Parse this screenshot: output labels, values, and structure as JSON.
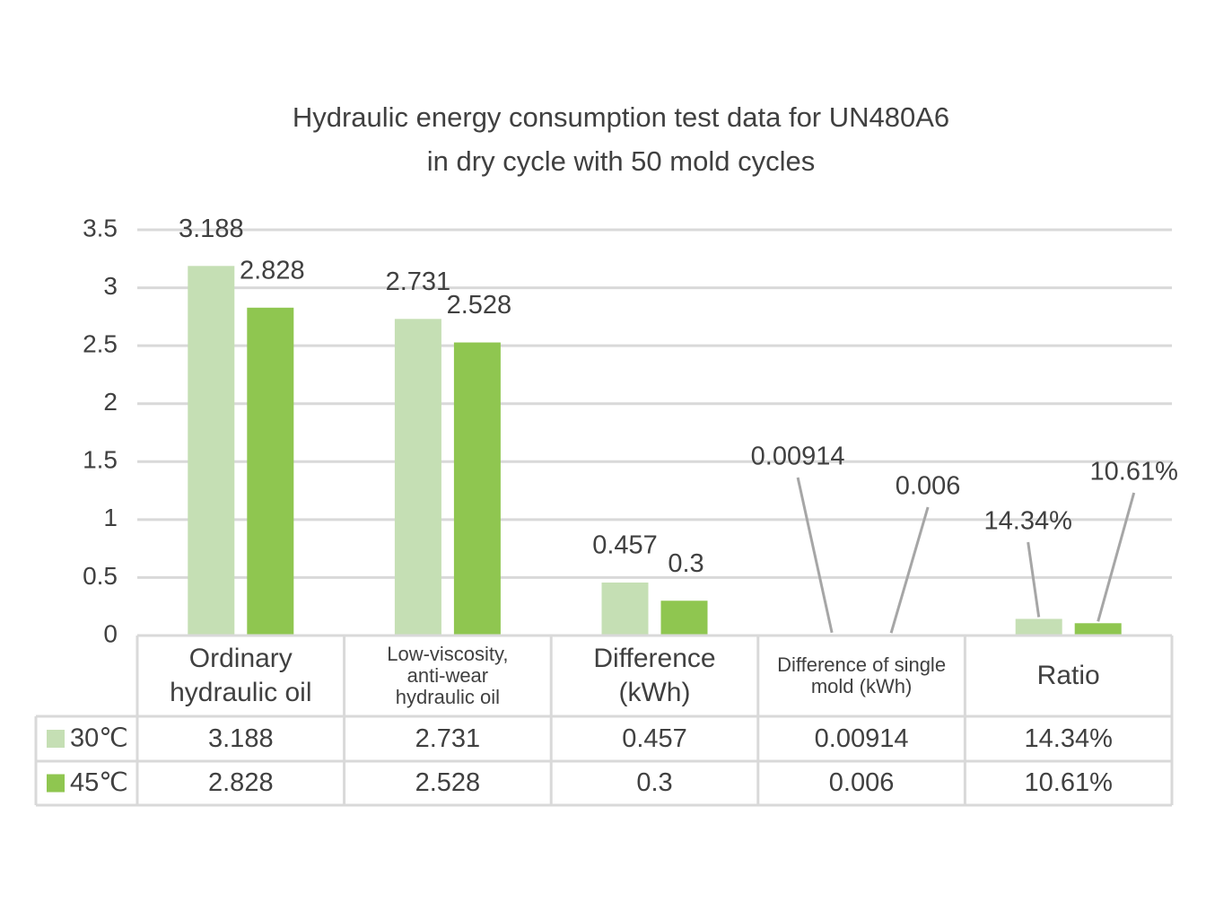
{
  "chart_data": {
    "type": "bar",
    "title": "Hydraulic energy consumption test data for UN480A6 in dry cycle with 50 mold cycles",
    "categories": [
      "Ordinary hydraulic oil",
      "Low-viscosity, anti-wear hydraulic oil",
      "Difference (kWh)",
      "Difference of single mold (kWh)",
      "Ratio"
    ],
    "series": [
      {
        "name": "30℃",
        "color": "#c5dfb4",
        "values": [
          3.188,
          2.731,
          0.457,
          0.00914,
          0.1434
        ],
        "value_labels": [
          "3.188",
          "2.731",
          "0.457",
          "0.00914",
          "14.34%"
        ]
      },
      {
        "name": "45℃",
        "color": "#8fc650",
        "values": [
          2.828,
          2.528,
          0.3,
          0.006,
          0.1061
        ],
        "value_labels": [
          "2.828",
          "2.528",
          "0.3",
          "0.006",
          "10.61%"
        ]
      }
    ],
    "ylim": [
      0,
      3.5
    ],
    "yticks": [
      0,
      0.5,
      1,
      1.5,
      2,
      2.5,
      3,
      3.5
    ],
    "grid": true
  }
}
